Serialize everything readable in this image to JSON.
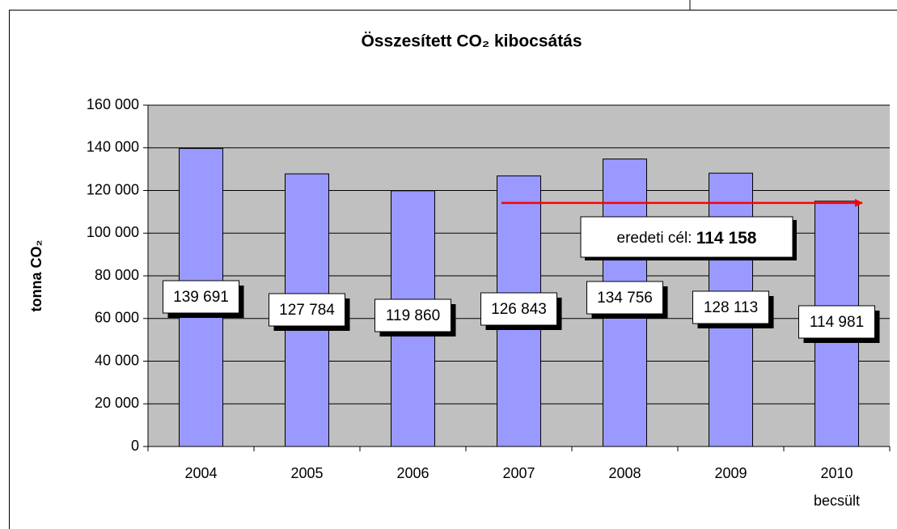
{
  "chart_data": {
    "type": "bar",
    "title": "Összesített CO₂ kibocsátás",
    "y_label": "tonna CO₂",
    "categories": [
      "2004",
      "2005",
      "2006",
      "2007",
      "2008",
      "2009",
      "2010"
    ],
    "category_note": "becsült",
    "values": [
      139691,
      127784,
      119860,
      126843,
      134756,
      128113,
      114981
    ],
    "value_labels": [
      "139 691",
      "127 784",
      "119 860",
      "126 843",
      "134 756",
      "128 113",
      "114 981"
    ],
    "color": "#9999ff",
    "ylim": [
      0,
      160000
    ],
    "yticks": [
      0,
      {
        "value": 20000,
        "label": "20 000"
      },
      {
        "value": 40000,
        "label": "40 000"
      },
      {
        "value": 60000,
        "label": "60 000"
      },
      {
        "value": 80000,
        "label": "80 000"
      },
      {
        "value": 100000,
        "label": "100 000"
      },
      {
        "value": 120000,
        "label": "120 000"
      },
      {
        "value": 140000,
        "label": "140 000"
      },
      {
        "value": 160000,
        "label": "160 000"
      }
    ],
    "grid": true,
    "target": {
      "label": "eredeti cél:",
      "value": 114158,
      "value_label": "114 158",
      "color": "#ff0000"
    }
  }
}
